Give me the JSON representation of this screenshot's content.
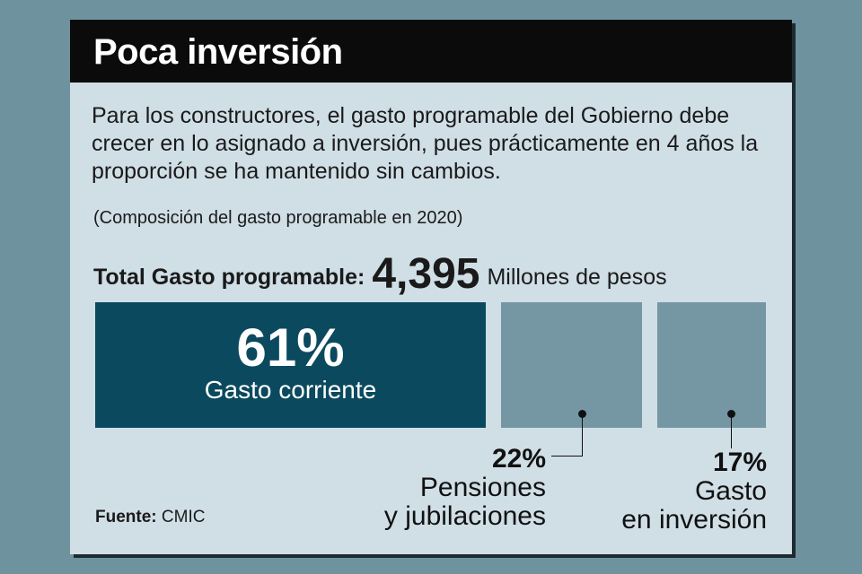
{
  "title": "Poca inversión",
  "description": "Para los constructores, el gasto programable del Gobierno debe crecer en lo asignado a inversión, pues prácticamente en 4 años la proporción se  ha mantenido sin cambios.",
  "subtitle": "(Composición del gasto programable en 2020)",
  "total": {
    "label": "Total Gasto programable:",
    "value": "4,395",
    "unit": "Millones de pesos"
  },
  "source": {
    "label": "Fuente:",
    "value": "CMIC"
  },
  "colors": {
    "title_bg": "#0b0b0b",
    "panel": "#d0dee6",
    "main_bar": "#0b4a5e",
    "other_bars": "#7597a4"
  },
  "chart_data": {
    "type": "bar",
    "title": "Composición del gasto programable en 2020",
    "categories": [
      "Gasto corriente",
      "Pensiones y jubilaciones",
      "Gasto en inversión"
    ],
    "values": [
      61,
      22,
      17
    ],
    "labels": [
      "61%",
      "22%",
      "17%"
    ],
    "label_lines": [
      [
        "Gasto corriente"
      ],
      [
        "Pensiones",
        "y jubilaciones"
      ],
      [
        "Gasto",
        "en inversión"
      ]
    ],
    "unit": "%"
  }
}
